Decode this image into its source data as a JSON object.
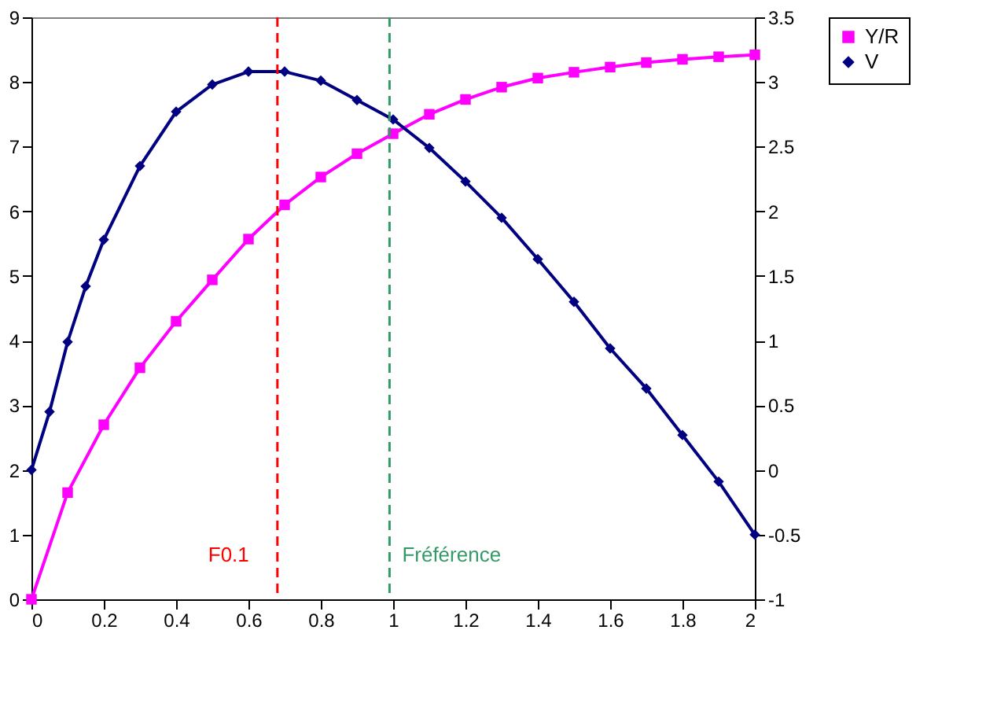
{
  "chart_data": {
    "type": "line",
    "xlim": [
      0,
      2
    ],
    "xticks": [
      0,
      0.2,
      0.4,
      0.6,
      0.8,
      1,
      1.2,
      1.4,
      1.6,
      1.8,
      2
    ],
    "ylim": [
      0,
      9
    ],
    "yticks": [
      0,
      1,
      2,
      3,
      4,
      5,
      6,
      7,
      8,
      9
    ],
    "y2lim": [
      -1,
      3.5
    ],
    "y2ticks": [
      -1,
      -0.5,
      0,
      0.5,
      1,
      1.5,
      2,
      2.5,
      3,
      3.5
    ],
    "grid": false,
    "legend": "right",
    "line_style": "solid",
    "series": [
      {
        "name": "Y/R",
        "color": "#ff00ff",
        "marker": "square",
        "x": [
          0,
          0.1,
          0.2,
          0.3,
          0.4,
          0.5,
          0.6,
          0.7,
          0.8,
          0.9,
          1.0,
          1.1,
          1.2,
          1.3,
          1.4,
          1.5,
          1.6,
          1.7,
          1.8,
          1.9,
          2.0
        ],
        "values": [
          0,
          1.65,
          2.7,
          3.58,
          4.3,
          4.94,
          5.57,
          6.1,
          6.53,
          6.89,
          7.2,
          7.5,
          7.73,
          7.92,
          8.06,
          8.15,
          8.23,
          8.3,
          8.35,
          8.39,
          8.42
        ]
      },
      {
        "name": "V",
        "color": "#000080",
        "marker": "diamond",
        "axis": "y2",
        "x": [
          0,
          0.05,
          0.1,
          0.15,
          0.2,
          0.3,
          0.4,
          0.5,
          0.6,
          0.7,
          0.8,
          0.9,
          1.0,
          1.1,
          1.2,
          1.3,
          1.4,
          1.5,
          1.6,
          1.7,
          1.8,
          1.9,
          2.0
        ],
        "values": [
          0,
          0.45,
          0.99,
          1.42,
          1.78,
          2.35,
          2.77,
          2.98,
          3.08,
          3.08,
          3.01,
          2.86,
          2.71,
          2.49,
          2.23,
          1.95,
          1.63,
          1.3,
          0.94,
          0.63,
          0.27,
          -0.09,
          -0.5
        ]
      }
    ],
    "ref_lines": [
      {
        "axis": "x",
        "value": 0.68,
        "label": "F0.1",
        "color": "#ff0000",
        "line_style": "dashed"
      },
      {
        "axis": "x",
        "value": 0.99,
        "label": "Fréférence",
        "color": "#339966",
        "line_style": "dashed"
      }
    ]
  }
}
